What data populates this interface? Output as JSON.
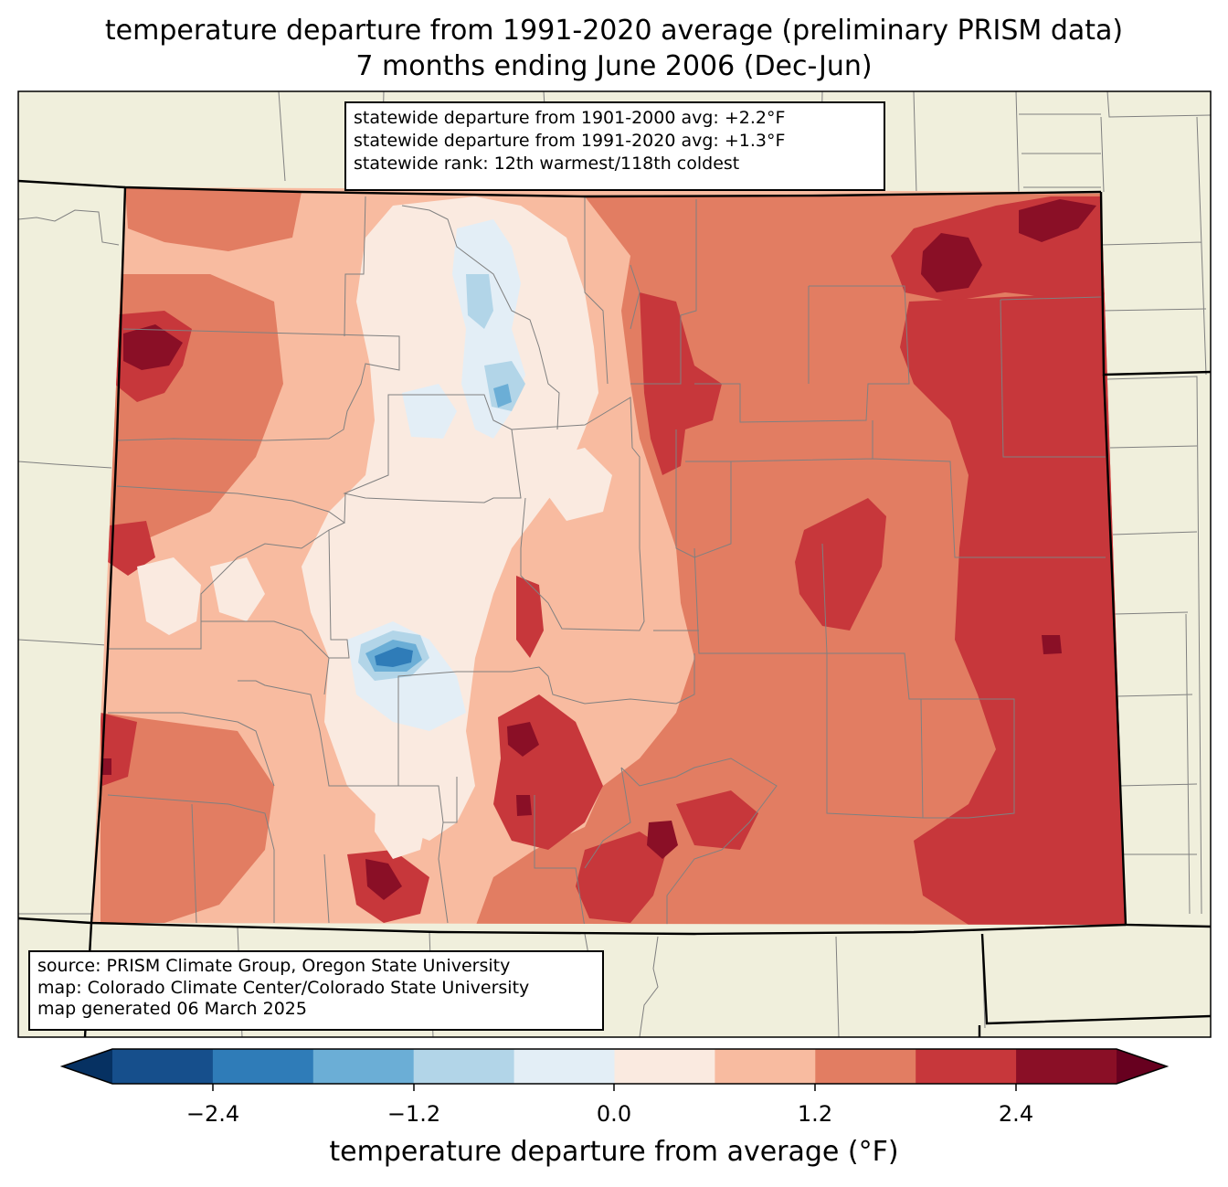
{
  "title": {
    "line1": "temperature departure from 1991-2020 average (preliminary PRISM data)",
    "line2": "7 months ending June 2006 (Dec-Jun)"
  },
  "stats": {
    "line1": "statewide departure from 1901-2000 avg: +2.2°F",
    "line2": "statewide departure from 1991-2020 avg: +1.3°F",
    "line3": "statewide rank: 12th warmest/118th coldest"
  },
  "source": {
    "line1": "source: PRISM Climate Group, Oregon State University",
    "line2": "map: Colorado Climate Center/Colorado State University",
    "line3": "map generated 06 March 2025"
  },
  "colorbar": {
    "label": "temperature departure from average (°F)",
    "ticks": [
      "−2.4",
      "−1.2",
      "0.0",
      "1.2",
      "2.4"
    ],
    "levels": [
      -3.0,
      -2.4,
      -1.8,
      -1.2,
      -0.6,
      0.0,
      0.6,
      1.2,
      1.8,
      2.4,
      3.0
    ],
    "colors": [
      "#164f8c",
      "#2f7cb8",
      "#6baed6",
      "#b2d5e8",
      "#e3eef6",
      "#faeae0",
      "#f8bba0",
      "#e27d62",
      "#c7373b",
      "#8a0f26"
    ],
    "under_color": "#063162",
    "over_color": "#67001f"
  },
  "map_colors": {
    "background": "#f0efdc",
    "county_line": "#808080",
    "state_line": "#000000"
  }
}
